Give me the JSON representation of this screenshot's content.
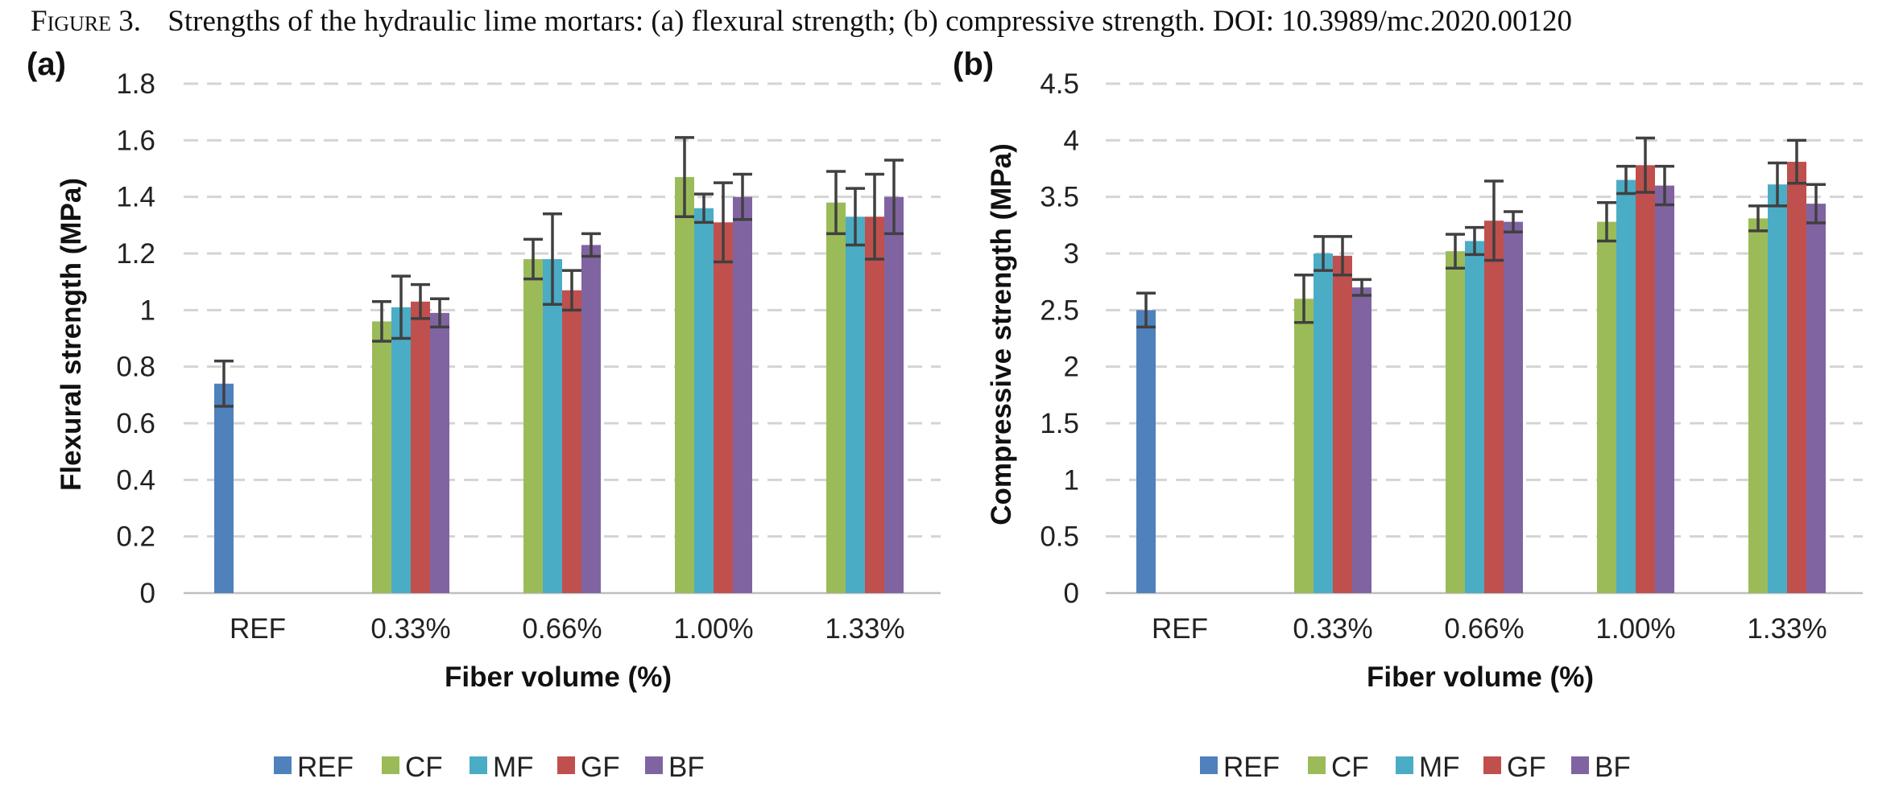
{
  "figure": {
    "caption_lead": "Figure 3.",
    "caption_text": "Strengths of the hydraulic lime mortars: (a) flexural strength; (b) compressive strength. DOI: 10.3989/mc.2020.00120"
  },
  "colors": {
    "REF": "#4f81bd",
    "CF": "#9bbb59",
    "MF": "#4bacc6",
    "GF": "#c0504d",
    "BF": "#8064a2"
  },
  "chart_data": [
    {
      "type": "bar",
      "panel_label": "(a)",
      "title": "",
      "xlabel": "Fiber volume (%)",
      "ylabel": "Flexural strength (MPa)",
      "ylim": [
        0,
        1.8
      ],
      "yticks": [
        "0",
        "0.2",
        "0.4",
        "0.6",
        "0.8",
        "1",
        "1.2",
        "1.4",
        "1.6",
        "1.8"
      ],
      "grid": true,
      "legend_position": "bottom",
      "categories": [
        "REF",
        "0.33%",
        "0.66%",
        "1.00%",
        "1.33%"
      ],
      "series": [
        {
          "name": "REF",
          "values": [
            0.74,
            null,
            null,
            null,
            null
          ],
          "errors": [
            0.08,
            null,
            null,
            null,
            null
          ]
        },
        {
          "name": "CF",
          "values": [
            null,
            0.96,
            1.18,
            1.47,
            1.38
          ],
          "errors": [
            null,
            0.07,
            0.07,
            0.14,
            0.11
          ]
        },
        {
          "name": "MF",
          "values": [
            null,
            1.01,
            1.18,
            1.36,
            1.33
          ],
          "errors": [
            null,
            0.11,
            0.16,
            0.05,
            0.1
          ]
        },
        {
          "name": "GF",
          "values": [
            null,
            1.03,
            1.07,
            1.31,
            1.33
          ],
          "errors": [
            null,
            0.06,
            0.07,
            0.14,
            0.15
          ]
        },
        {
          "name": "BF",
          "values": [
            null,
            0.99,
            1.23,
            1.4,
            1.4
          ],
          "errors": [
            null,
            0.05,
            0.04,
            0.08,
            0.13
          ]
        }
      ]
    },
    {
      "type": "bar",
      "panel_label": "(b)",
      "title": "",
      "xlabel": "Fiber volume (%)",
      "ylabel": "Compressive strength (MPa)",
      "ylim": [
        0,
        4.5
      ],
      "yticks": [
        "0",
        "0.5",
        "1",
        "1.5",
        "2",
        "2.5",
        "3",
        "3.5",
        "4",
        "4.5"
      ],
      "grid": true,
      "legend_position": "bottom",
      "categories": [
        "REF",
        "0.33%",
        "0.66%",
        "1.00%",
        "1.33%"
      ],
      "series": [
        {
          "name": "REF",
          "values": [
            2.5,
            null,
            null,
            null,
            null
          ],
          "errors": [
            0.15,
            null,
            null,
            null,
            null
          ]
        },
        {
          "name": "CF",
          "values": [
            null,
            2.6,
            3.02,
            3.28,
            3.31
          ],
          "errors": [
            null,
            0.21,
            0.15,
            0.17,
            0.11
          ]
        },
        {
          "name": "MF",
          "values": [
            null,
            3.0,
            3.11,
            3.65,
            3.61
          ],
          "errors": [
            null,
            0.15,
            0.12,
            0.12,
            0.19
          ]
        },
        {
          "name": "GF",
          "values": [
            null,
            2.98,
            3.29,
            3.78,
            3.81
          ],
          "errors": [
            null,
            0.17,
            0.35,
            0.24,
            0.19
          ]
        },
        {
          "name": "BF",
          "values": [
            null,
            2.7,
            3.28,
            3.6,
            3.44
          ],
          "errors": [
            null,
            0.07,
            0.09,
            0.17,
            0.17
          ]
        }
      ]
    }
  ]
}
